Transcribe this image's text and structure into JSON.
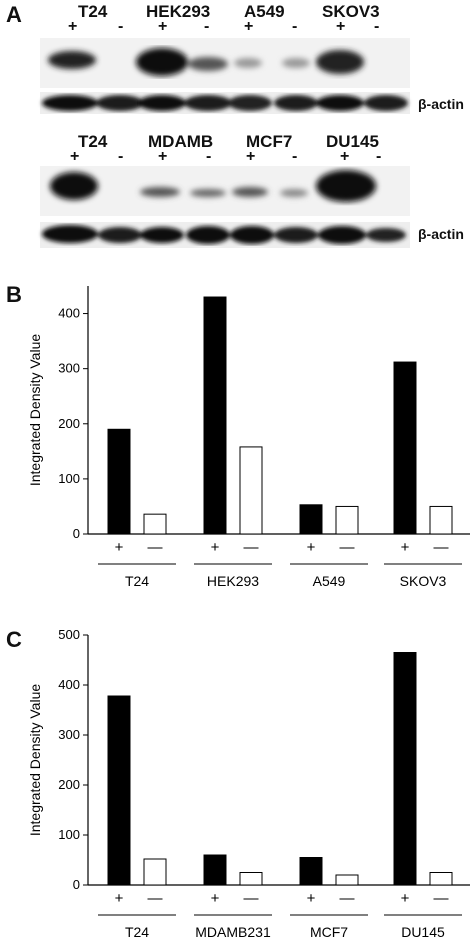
{
  "panels": {
    "a": "A",
    "b": "B",
    "c": "C"
  },
  "blot": {
    "row1_labels": [
      "T24",
      "HEK293",
      "A549",
      "SKOV3"
    ],
    "row2_labels": [
      "T24",
      "MDAMB",
      "MCF7",
      "DU145"
    ],
    "plus": "+",
    "minus": "-",
    "loading_control": "β-actin"
  },
  "chart_data": [
    {
      "type": "bar",
      "ylabel": "Integrated Density Value",
      "xlabel": "",
      "ylim": [
        0,
        450
      ],
      "yticks": [
        0,
        100,
        200,
        300,
        400
      ],
      "groups": [
        "T24",
        "HEK293",
        "A549",
        "SKOV3"
      ],
      "conditions": [
        "+",
        "—"
      ],
      "series": [
        {
          "name": "+",
          "values": [
            190,
            430,
            53,
            312
          ],
          "color": "#000000"
        },
        {
          "name": "—",
          "values": [
            36,
            158,
            50,
            50
          ],
          "color": "#ffffff"
        }
      ]
    },
    {
      "type": "bar",
      "ylabel": "Integrated Density Value",
      "xlabel": "",
      "ylim": [
        0,
        500
      ],
      "yticks": [
        0,
        100,
        200,
        300,
        400,
        500
      ],
      "groups": [
        "T24",
        "MDAMB231",
        "MCF7",
        "DU145"
      ],
      "conditions": [
        "+",
        "—"
      ],
      "series": [
        {
          "name": "+",
          "values": [
            378,
            60,
            55,
            465
          ],
          "color": "#000000"
        },
        {
          "name": "—",
          "values": [
            52,
            25,
            20,
            25
          ],
          "color": "#ffffff"
        }
      ]
    }
  ]
}
